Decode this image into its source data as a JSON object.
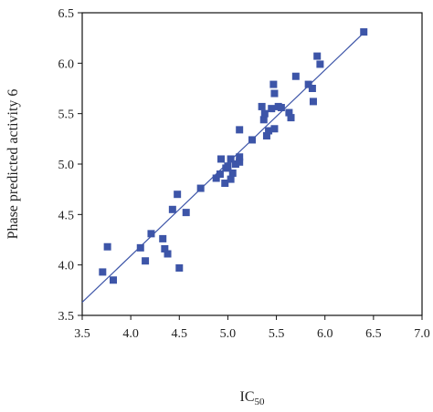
{
  "chart_data": {
    "type": "scatter",
    "title": "",
    "xlabel": "IC",
    "xlabel_subscript": "50",
    "ylabel": "Phase predicted activity 6",
    "xlim": [
      3.5,
      7.0
    ],
    "ylim": [
      3.5,
      6.5
    ],
    "xticks": [
      "3.5",
      "4.0",
      "4.5",
      "5.0",
      "5.5",
      "6.0",
      "6.5",
      "7.0"
    ],
    "yticks": [
      "3.5",
      "4.0",
      "4.5",
      "5.0",
      "5.5",
      "6.0",
      "6.5"
    ],
    "grid": false,
    "legend": "none",
    "marker_color": "#3d55a8",
    "line_color": "#3d55a8",
    "fit_line": {
      "x": [
        3.5,
        6.42
      ],
      "y": [
        3.63,
        6.32
      ]
    },
    "series": [
      {
        "points": [
          [
            3.71,
            3.93
          ],
          [
            3.76,
            4.18
          ],
          [
            3.82,
            3.85
          ],
          [
            4.1,
            4.17
          ],
          [
            4.15,
            4.04
          ],
          [
            4.21,
            4.31
          ],
          [
            4.33,
            4.26
          ],
          [
            4.35,
            4.16
          ],
          [
            4.38,
            4.11
          ],
          [
            4.43,
            4.55
          ],
          [
            4.48,
            4.7
          ],
          [
            4.5,
            3.97
          ],
          [
            4.57,
            4.52
          ],
          [
            4.72,
            4.76
          ],
          [
            4.88,
            4.86
          ],
          [
            4.92,
            4.9
          ],
          [
            4.93,
            5.05
          ],
          [
            4.97,
            4.81
          ],
          [
            4.98,
            4.96
          ],
          [
            5.0,
            4.98
          ],
          [
            5.03,
            5.05
          ],
          [
            5.03,
            4.85
          ],
          [
            5.05,
            4.91
          ],
          [
            5.08,
            5.0
          ],
          [
            5.12,
            5.02
          ],
          [
            5.12,
            5.07
          ],
          [
            5.12,
            5.34
          ],
          [
            5.25,
            5.24
          ],
          [
            5.35,
            5.57
          ],
          [
            5.37,
            5.44
          ],
          [
            5.38,
            5.5
          ],
          [
            5.4,
            5.28
          ],
          [
            5.42,
            5.33
          ],
          [
            5.45,
            5.55
          ],
          [
            5.47,
            5.79
          ],
          [
            5.48,
            5.7
          ],
          [
            5.48,
            5.35
          ],
          [
            5.52,
            5.57
          ],
          [
            5.55,
            5.56
          ],
          [
            5.63,
            5.51
          ],
          [
            5.65,
            5.46
          ],
          [
            5.7,
            5.87
          ],
          [
            5.83,
            5.79
          ],
          [
            5.87,
            5.75
          ],
          [
            5.88,
            5.62
          ],
          [
            5.92,
            6.07
          ],
          [
            5.95,
            5.99
          ],
          [
            6.4,
            6.31
          ]
        ]
      }
    ]
  }
}
